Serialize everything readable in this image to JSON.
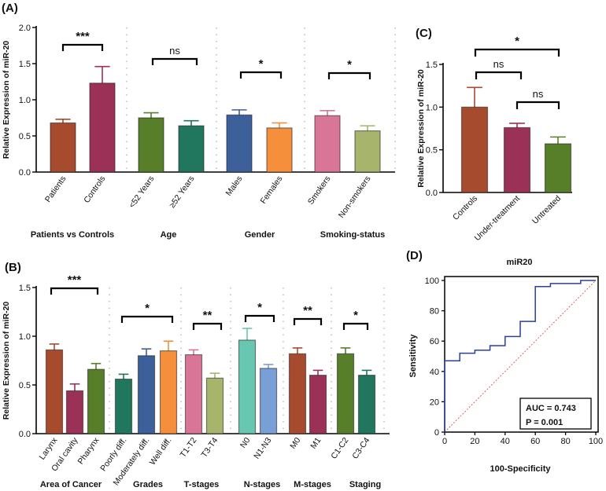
{
  "chart_data": [
    {
      "panel": "(A)",
      "type": "bar",
      "ylabel": "Relative Expression of miR-20",
      "ylim": [
        0,
        2.0
      ],
      "yticks": [
        "0.0",
        "0.5",
        "1.0",
        "1.5",
        "2.0"
      ],
      "categories": [
        "Patients",
        "Controls",
        "<52 Years",
        "≥52 Years",
        "Males",
        "Females",
        "Smokers",
        "Non-smokers"
      ],
      "values": [
        0.68,
        1.23,
        0.75,
        0.64,
        0.79,
        0.61,
        0.78,
        0.57
      ],
      "errors": [
        0.05,
        0.23,
        0.07,
        0.07,
        0.07,
        0.07,
        0.07,
        0.07
      ],
      "colors": [
        "#a64b2d",
        "#9b3157",
        "#577f2a",
        "#21775e",
        "#3d5f9a",
        "#f58f3c",
        "#d97597",
        "#a6b56b"
      ],
      "groups": [
        {
          "label": "Patients vs Controls",
          "sig": "***"
        },
        {
          "label": "Age",
          "sig": "ns"
        },
        {
          "label": "Gender",
          "sig": "*"
        },
        {
          "label": "Smoking-status",
          "sig": "*"
        }
      ]
    },
    {
      "panel": "(B)",
      "type": "bar",
      "ylabel": "Relative Expression of miR-20",
      "ylim": [
        0,
        1.5
      ],
      "yticks": [
        "0.0",
        "0.5",
        "1.0",
        "1.5"
      ],
      "categories": [
        "Larynx",
        "Oral cavity",
        "Pharynx",
        "Poorly diff.",
        "Moderately diff.",
        "Well diff.",
        "T1-T2",
        "T3-T4",
        "N0",
        "N1-N3",
        "M0",
        "M1",
        "C1-C2",
        "C3-C4"
      ],
      "values": [
        0.86,
        0.44,
        0.66,
        0.56,
        0.8,
        0.85,
        0.81,
        0.57,
        0.96,
        0.67,
        0.82,
        0.6,
        0.82,
        0.6
      ],
      "errors": [
        0.06,
        0.07,
        0.06,
        0.05,
        0.07,
        0.1,
        0.05,
        0.05,
        0.12,
        0.04,
        0.06,
        0.05,
        0.06,
        0.05
      ],
      "colors": [
        "#a64b2d",
        "#9b3157",
        "#577f2a",
        "#21775e",
        "#3d5f9a",
        "#f58f3c",
        "#d97597",
        "#a6b56b",
        "#67c7b0",
        "#7a9fd6",
        "#a64b2d",
        "#9b3157",
        "#577f2a",
        "#21775e"
      ],
      "groups": [
        {
          "label": "Area of  Cancer",
          "sig": "***"
        },
        {
          "label": "Grades",
          "sig": "*"
        },
        {
          "label": "T-stages",
          "sig": "**"
        },
        {
          "label": "N-stages",
          "sig": "*"
        },
        {
          "label": "M-stages",
          "sig": "**"
        },
        {
          "label": "Staging",
          "sig": "*"
        }
      ]
    },
    {
      "panel": "(C)",
      "type": "bar",
      "ylabel": "Relative Expression of miR-20",
      "ylim": [
        0,
        1.5
      ],
      "yticks": [
        "0.0",
        "0.5",
        "1.0",
        "1.5"
      ],
      "categories": [
        "Controls",
        "Under-treatment",
        "Untreated"
      ],
      "values": [
        1.0,
        0.76,
        0.57
      ],
      "errors": [
        0.23,
        0.05,
        0.08
      ],
      "colors": [
        "#a64b2d",
        "#9b3157",
        "#577f2a"
      ],
      "comparisons": [
        {
          "from": "Controls",
          "to": "Under-treatment",
          "sig": "ns"
        },
        {
          "from": "Under-treatment",
          "to": "Untreated",
          "sig": "ns"
        },
        {
          "from": "Controls",
          "to": "Untreated",
          "sig": "*"
        }
      ]
    },
    {
      "panel": "(D)",
      "type": "line",
      "title": "miR20",
      "xlabel": "100-Specificity",
      "ylabel": "Sensitivity",
      "xlim": [
        0,
        100
      ],
      "ylim": [
        0,
        100
      ],
      "xticks": [
        "0",
        "20",
        "40",
        "60",
        "80",
        "100"
      ],
      "yticks": [
        "0",
        "20",
        "40",
        "60",
        "80",
        "100"
      ],
      "series": [
        {
          "name": "ROC",
          "color": "#2b3f9e",
          "x": [
            0,
            0,
            10,
            10,
            20,
            20,
            30,
            30,
            40,
            40,
            50,
            50,
            60,
            60,
            70,
            70,
            80,
            90,
            90,
            100
          ],
          "y": [
            0,
            47,
            47,
            52,
            52,
            54,
            54,
            57,
            57,
            63,
            63,
            73,
            73,
            96,
            96,
            98,
            98,
            98,
            100,
            100
          ]
        },
        {
          "name": "Reference",
          "color": "#d04040",
          "x": [
            0,
            100
          ],
          "y": [
            0,
            100
          ]
        }
      ],
      "annotation": {
        "auc": "AUC = 0.743",
        "p": "P = 0.001"
      }
    }
  ]
}
